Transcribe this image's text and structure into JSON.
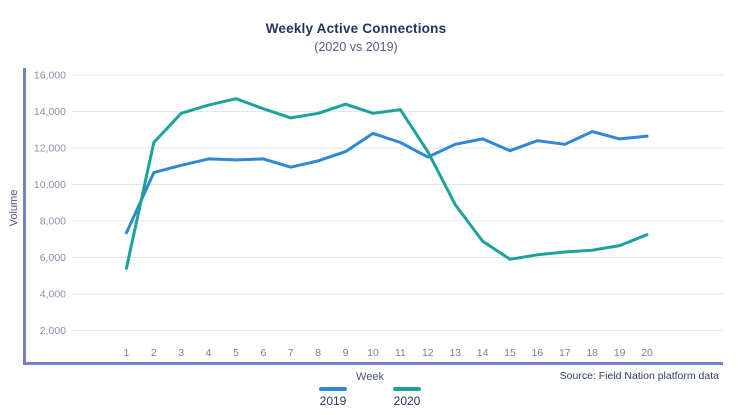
{
  "chart": {
    "title": "Weekly Active Connections",
    "subtitle": "(2020 vs 2019)",
    "ylabel": "Volume",
    "xlabel": "Week",
    "source": "Source: Field Nation platform data"
  },
  "colors": {
    "axis_line": "#7681c8",
    "gridline": "#e2e5ee",
    "y_tick_label": "#8891af",
    "x_tick_label": "#77819f",
    "title_text": "#26335f",
    "subtitle_text": "#525c85"
  },
  "chart_data": {
    "type": "line",
    "title": "Weekly Active Connections",
    "subtitle": "(2020 vs 2019)",
    "xlabel": "Week",
    "ylabel": "Volume",
    "x": [
      1,
      2,
      3,
      4,
      5,
      6,
      7,
      8,
      9,
      10,
      11,
      12,
      13,
      14,
      15,
      16,
      17,
      18,
      19,
      20
    ],
    "y_ticks": [
      16000,
      14000,
      12000,
      10000,
      8000,
      6000,
      4000,
      2000
    ],
    "ylim": [
      2000,
      16000
    ],
    "grid": true,
    "legend_position": "bottom",
    "series": [
      {
        "name": "2019",
        "color": "#2f87d7",
        "values": [
          7350,
          10650,
          11050,
          11400,
          11350,
          11400,
          10950,
          11300,
          11800,
          12800,
          12300,
          11500,
          12200,
          12500,
          11850,
          12400,
          12200,
          12900,
          12500,
          12650
        ]
      },
      {
        "name": "2020",
        "color": "#1ba39b",
        "values": [
          5400,
          12300,
          13900,
          14350,
          14700,
          14150,
          13650,
          13900,
          14400,
          13900,
          14100,
          11800,
          8900,
          6900,
          5900,
          6150,
          6300,
          6400,
          6650,
          7250
        ]
      }
    ]
  }
}
